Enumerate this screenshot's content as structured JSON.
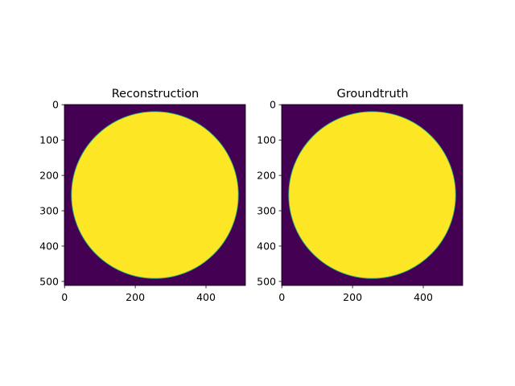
{
  "figure": {
    "background": "#ffffff"
  },
  "chart_data": [
    {
      "type": "heatmap",
      "title": "Reconstruction",
      "xlabel": "",
      "ylabel": "",
      "shape": [
        512,
        512
      ],
      "xlim": [
        0,
        511
      ],
      "ylim": [
        511,
        0
      ],
      "xticks": [
        0,
        200,
        400
      ],
      "yticks": [
        0,
        100,
        200,
        300,
        400,
        500
      ],
      "colormap": "viridis",
      "background_value": 0,
      "background_color": "#440154",
      "content": {
        "shape": "disk",
        "center": [
          256,
          256
        ],
        "radius": 236,
        "value": 1,
        "color": "#fde725",
        "edge_color": "#2fb47c"
      }
    },
    {
      "type": "heatmap",
      "title": "Groundtruth",
      "xlabel": "",
      "ylabel": "",
      "shape": [
        512,
        512
      ],
      "xlim": [
        0,
        511
      ],
      "ylim": [
        511,
        0
      ],
      "xticks": [
        0,
        200,
        400
      ],
      "yticks": [
        0,
        100,
        200,
        300,
        400,
        500
      ],
      "colormap": "viridis",
      "background_value": 0,
      "background_color": "#440154",
      "content": {
        "shape": "disk",
        "center": [
          256,
          256
        ],
        "radius": 236,
        "value": 1,
        "color": "#fde725",
        "edge_color": "#2fb47c"
      }
    }
  ]
}
